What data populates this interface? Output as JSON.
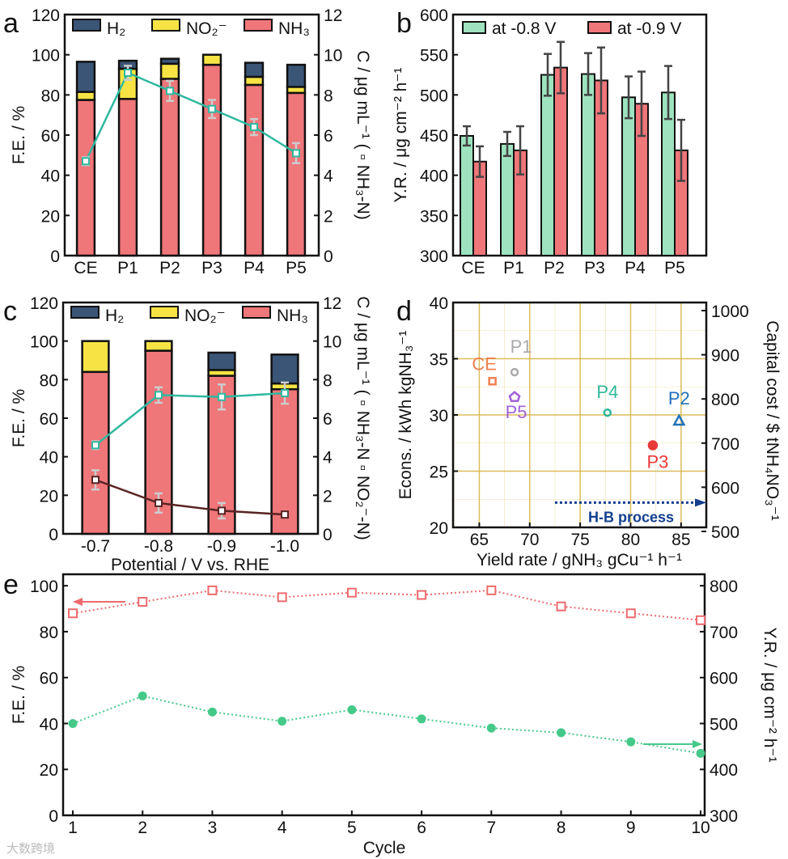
{
  "colors": {
    "h2": "#3b5577",
    "no2": "#f7e444",
    "nh3": "#ef7679",
    "green": "#9de3bf",
    "teal": "#2fb8a0",
    "brown": "#5a2424",
    "grid": "#d9b54a",
    "hb": "#123f8f"
  },
  "watermark": "大数跨境",
  "chart_data": [
    {
      "panel": "a",
      "type": "bar",
      "title": "",
      "categories": [
        "CE",
        "P1",
        "P2",
        "P3",
        "P4",
        "P5"
      ],
      "stack_series": [
        {
          "name": "NH₃",
          "values": [
            77.5,
            78,
            88,
            95,
            85,
            81
          ]
        },
        {
          "name": "NO₂⁻",
          "values": [
            4,
            15,
            7.5,
            5,
            4,
            3
          ]
        },
        {
          "name": "H₂",
          "values": [
            15,
            4,
            2.5,
            0,
            7,
            11
          ]
        }
      ],
      "legend": [
        "H₂",
        "NO₂⁻",
        "NH₃"
      ],
      "line_series": [
        {
          "name": "NH₃-N",
          "values": [
            4.7,
            9.1,
            8.2,
            7.3,
            6.4,
            5.1
          ],
          "errors": [
            0.2,
            0.35,
            0.5,
            0.45,
            0.4,
            0.5
          ]
        }
      ],
      "ylabel": "F.E. / %",
      "ylim": [
        0,
        120
      ],
      "yticks": [
        "0",
        "20",
        "40",
        "60",
        "80",
        "100",
        "120"
      ],
      "y2label": "C / μg mL⁻¹ ( ▫ NH₃-N)",
      "y2lim": [
        0,
        12
      ],
      "y2ticks": [
        "0",
        "2",
        "4",
        "6",
        "8",
        "10",
        "12"
      ]
    },
    {
      "panel": "b",
      "type": "bar",
      "categories": [
        "CE",
        "P1",
        "P2",
        "P3",
        "P4",
        "P5"
      ],
      "series": [
        {
          "name": "at -0.8 V",
          "values": [
            449,
            439,
            525,
            526,
            497,
            503
          ],
          "errors": [
            12,
            15,
            26,
            26,
            26,
            33
          ]
        },
        {
          "name": "at -0.9 V",
          "values": [
            417,
            431,
            534,
            518,
            489,
            431
          ],
          "errors": [
            19,
            30,
            32,
            41,
            40,
            38
          ]
        }
      ],
      "ylabel": "Y.R. / μg cm⁻² h⁻¹",
      "ylim": [
        300,
        600
      ],
      "yticks": [
        "300",
        "350",
        "400",
        "450",
        "500",
        "550",
        "600"
      ]
    },
    {
      "panel": "c",
      "type": "bar",
      "categories": [
        "-0.7",
        "-0.8",
        "-0.9",
        "-1.0"
      ],
      "stack_series": [
        {
          "name": "NH₃",
          "values": [
            84,
            95,
            82,
            75
          ]
        },
        {
          "name": "NO₂⁻",
          "values": [
            16,
            5,
            3,
            3
          ]
        },
        {
          "name": "H₂",
          "values": [
            0,
            0,
            9,
            15
          ]
        }
      ],
      "legend": [
        "H₂",
        "NO₂⁻",
        "NH₃"
      ],
      "line_series": [
        {
          "name": "NH₃-N",
          "values": [
            4.6,
            7.2,
            7.1,
            7.3
          ],
          "errors": [
            0.2,
            0.4,
            0.65,
            0.55
          ]
        },
        {
          "name": "NO₂⁻-N",
          "values": [
            2.8,
            1.6,
            1.2,
            1.0
          ],
          "errors": [
            0.5,
            0.5,
            0.4,
            0.15
          ]
        }
      ],
      "xlabel": "Potential / V vs. RHE",
      "ylabel": "F.E. / %",
      "ylim": [
        0,
        120
      ],
      "yticks": [
        "0",
        "20",
        "40",
        "60",
        "80",
        "100",
        "120"
      ],
      "y2label": "C / μg mL⁻¹ ( ▫ NH₃-N  ▫ NO₂⁻-N)",
      "y2lim": [
        0,
        12
      ],
      "y2ticks": [
        "0",
        "2",
        "4",
        "6",
        "8",
        "10",
        "12"
      ]
    },
    {
      "panel": "d",
      "type": "scatter",
      "points": [
        {
          "label": "CE",
          "x": 66.3,
          "y": 33.0,
          "marker": "square",
          "color": "#f08050"
        },
        {
          "label": "P1",
          "x": 68.5,
          "y": 33.8,
          "marker": "circle",
          "color": "#aaaaaa"
        },
        {
          "label": "P5",
          "x": 68.5,
          "y": 31.6,
          "marker": "pentagon",
          "color": "#a060d8"
        },
        {
          "label": "P4",
          "x": 77.7,
          "y": 30.2,
          "marker": "hexagon",
          "color": "#2fb89a"
        },
        {
          "label": "P2",
          "x": 84.8,
          "y": 29.5,
          "marker": "triangle",
          "color": "#2070b8"
        },
        {
          "label": "P3",
          "x": 82.2,
          "y": 27.3,
          "marker": "filled-circle",
          "color": "#e83838"
        }
      ],
      "annotation": {
        "text": "H-B process",
        "y": 22.2,
        "x_start": 72.5
      },
      "xlabel": "Yield rate / gNH₃ gCu⁻¹ h⁻¹",
      "xlim": [
        62.4,
        87.5
      ],
      "xticks": [
        "65",
        "70",
        "75",
        "80",
        "85"
      ],
      "ylabel": "Econs. / kWh kgNH₃⁻¹",
      "ylim": [
        20,
        40
      ],
      "yticks": [
        "20",
        "25",
        "30",
        "35",
        "40"
      ],
      "y2label": "Capital cost / $ tNH₄NO₃⁻¹",
      "y2lim": [
        500,
        1000
      ],
      "y2ticks": [
        "500",
        "600",
        "700",
        "800",
        "900",
        "1000"
      ],
      "grid": true
    },
    {
      "panel": "e",
      "type": "line",
      "x": [
        1,
        2,
        3,
        4,
        5,
        6,
        7,
        8,
        9,
        10
      ],
      "series": [
        {
          "name": "F.E.",
          "axis": "left",
          "values": [
            88,
            93,
            98,
            95,
            97,
            96,
            98,
            91,
            88,
            85
          ]
        },
        {
          "name": "Y.R.",
          "axis": "right",
          "values": [
            500,
            560,
            525,
            505,
            530,
            510,
            490,
            480,
            460,
            435
          ]
        }
      ],
      "xlabel": "Cycle",
      "xticks": [
        "1",
        "2",
        "3",
        "4",
        "5",
        "6",
        "7",
        "8",
        "9",
        "10"
      ],
      "ylabel": "F.E. / %",
      "ylim": [
        0,
        105
      ],
      "yticks": [
        "0",
        "20",
        "40",
        "60",
        "80",
        "100"
      ],
      "y2label": "Y.R. / μg cm⁻² h⁻¹",
      "y2lim": [
        300,
        825
      ],
      "y2ticks": [
        "300",
        "400",
        "500",
        "600",
        "700",
        "800"
      ]
    }
  ]
}
